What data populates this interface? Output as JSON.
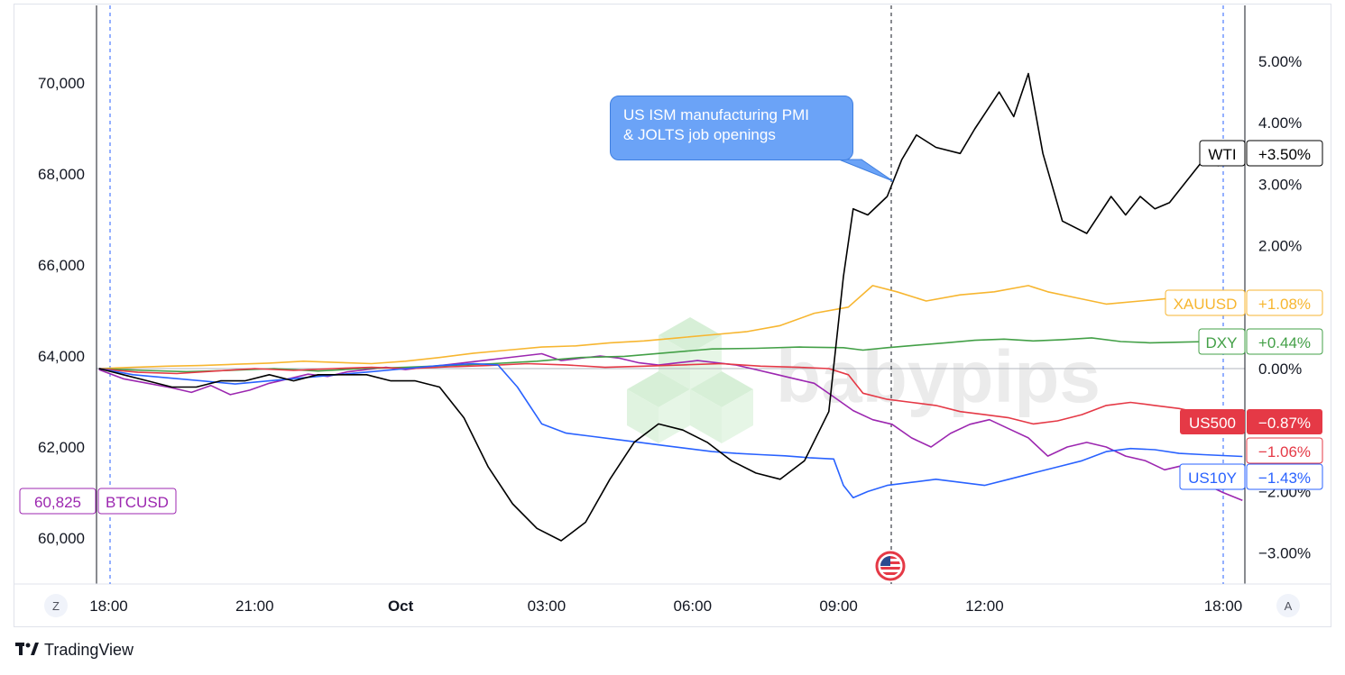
{
  "chart_data": {
    "type": "line",
    "annotation": "US ISM manufacturing PMI\n& JOLTS job openings",
    "left_axis": {
      "ticks": [
        "70,000",
        "68,000",
        "66,000",
        "64,000",
        "62,000",
        "60,000"
      ],
      "range": [
        59000,
        71000
      ]
    },
    "right_axis": {
      "ticks": [
        "5.00%",
        "4.00%",
        "3.00%",
        "2.00%",
        "0.00%",
        "−2.00%",
        "−3.00%"
      ],
      "range": [
        -3.6,
        5.7
      ]
    },
    "x_axis": {
      "ticks": [
        "18:00",
        "21:00",
        "Oct",
        "03:00",
        "06:00",
        "09:00",
        "12:00",
        "18:00"
      ]
    },
    "x_range_hours": [
      -6.25,
      17.35
    ],
    "series": [
      {
        "name": "WTI",
        "axis": "right",
        "color": "#000000",
        "last_value": "+3.50%",
        "x": [
          -6.2,
          -5.7,
          -5.2,
          -4.7,
          -4.2,
          -3.7,
          -3.2,
          -2.7,
          -2.2,
          -1.7,
          -1.2,
          -0.7,
          -0.2,
          0.3,
          0.8,
          1.3,
          1.8,
          2.3,
          2.8,
          3.3,
          3.8,
          4.3,
          4.8,
          5.3,
          5.8,
          6.3,
          6.8,
          7.3,
          7.8,
          8.3,
          8.8,
          9.1,
          9.3,
          9.6,
          10.0,
          10.3,
          10.6,
          11.0,
          11.5,
          11.8,
          12.3,
          12.6,
          12.9,
          13.2,
          13.6,
          14.1,
          14.6,
          14.9,
          15.2,
          15.5,
          15.8,
          16.1,
          16.5,
          16.8,
          17.3
        ],
        "y": [
          0.0,
          -0.1,
          -0.2,
          -0.3,
          -0.3,
          -0.2,
          -0.2,
          -0.1,
          -0.2,
          -0.1,
          -0.1,
          -0.1,
          -0.2,
          -0.2,
          -0.3,
          -0.8,
          -1.6,
          -2.2,
          -2.6,
          -2.8,
          -2.5,
          -1.8,
          -1.2,
          -0.9,
          -1.0,
          -1.2,
          -1.5,
          -1.7,
          -1.8,
          -1.5,
          -0.7,
          1.5,
          2.6,
          2.5,
          2.8,
          3.4,
          3.8,
          3.6,
          3.5,
          3.9,
          4.5,
          4.1,
          4.8,
          3.5,
          2.4,
          2.2,
          2.8,
          2.5,
          2.8,
          2.6,
          2.7,
          3.0,
          3.4,
          3.3,
          3.5
        ]
      },
      {
        "name": "XAUUSD",
        "axis": "right",
        "color": "#f7b630",
        "last_value": "+1.08%",
        "x": [
          -6.2,
          -5.5,
          -4.8,
          -4.1,
          -3.4,
          -2.7,
          -2.0,
          -1.3,
          -0.6,
          0.1,
          0.8,
          1.5,
          2.2,
          2.9,
          3.6,
          4.3,
          5.0,
          5.7,
          6.4,
          7.1,
          7.8,
          8.5,
          9.2,
          9.7,
          10.2,
          10.8,
          11.5,
          12.2,
          12.9,
          13.3,
          13.9,
          14.5,
          15.2,
          15.9,
          16.6,
          17.3
        ],
        "y": [
          0.0,
          0.02,
          0.04,
          0.05,
          0.07,
          0.09,
          0.12,
          0.1,
          0.08,
          0.12,
          0.18,
          0.25,
          0.3,
          0.35,
          0.37,
          0.42,
          0.45,
          0.5,
          0.55,
          0.6,
          0.7,
          0.9,
          1.0,
          1.35,
          1.25,
          1.1,
          1.2,
          1.25,
          1.35,
          1.25,
          1.15,
          1.05,
          1.1,
          1.15,
          1.1,
          1.08
        ]
      },
      {
        "name": "DXY",
        "axis": "right",
        "color": "#43a047",
        "last_value": "+0.44%",
        "x": [
          -6.2,
          -5.3,
          -4.4,
          -3.5,
          -2.6,
          -1.7,
          -0.8,
          0.1,
          1.0,
          1.9,
          2.8,
          3.7,
          4.6,
          5.5,
          6.4,
          7.3,
          8.2,
          9.1,
          9.5,
          10.0,
          10.6,
          11.2,
          11.8,
          12.4,
          13.0,
          13.6,
          14.2,
          14.8,
          15.4,
          16.0,
          16.6,
          17.3
        ],
        "y": [
          0.0,
          -0.03,
          -0.05,
          -0.03,
          0.0,
          -0.04,
          0.0,
          0.02,
          0.05,
          0.08,
          0.12,
          0.18,
          0.2,
          0.26,
          0.32,
          0.33,
          0.35,
          0.34,
          0.3,
          0.34,
          0.38,
          0.42,
          0.46,
          0.48,
          0.45,
          0.47,
          0.5,
          0.44,
          0.42,
          0.43,
          0.44,
          0.44
        ]
      },
      {
        "name": "US500",
        "axis": "right",
        "color": "#e53946",
        "last_value": "−0.87%",
        "x": [
          -6.2,
          -5.4,
          -4.6,
          -3.8,
          -3.0,
          -2.2,
          -1.4,
          -0.6,
          0.2,
          1.0,
          1.8,
          2.6,
          3.4,
          4.2,
          5.0,
          5.8,
          6.6,
          7.4,
          8.2,
          8.8,
          9.2,
          9.5,
          10.0,
          10.5,
          11.0,
          11.5,
          12.0,
          12.5,
          13.0,
          13.5,
          14.0,
          14.5,
          15.0,
          15.5,
          16.0,
          16.6,
          17.3
        ],
        "y": [
          0.0,
          -0.06,
          -0.08,
          -0.04,
          0.0,
          -0.03,
          0.0,
          0.02,
          0.0,
          0.03,
          0.05,
          0.08,
          0.06,
          0.02,
          0.04,
          0.06,
          0.08,
          0.04,
          0.02,
          0.0,
          -0.1,
          -0.4,
          -0.5,
          -0.55,
          -0.6,
          -0.7,
          -0.75,
          -0.8,
          -0.9,
          -0.85,
          -0.75,
          -0.6,
          -0.55,
          -0.6,
          -0.65,
          -0.75,
          -0.87
        ]
      },
      {
        "name": "US10Y",
        "axis": "right",
        "color": "#2962ff",
        "last_value": "−1.43%",
        "x": [
          -6.2,
          -5.5,
          -4.8,
          -4.1,
          -3.4,
          -2.7,
          -2.0,
          -1.3,
          -0.6,
          0.1,
          0.8,
          1.5,
          2.0,
          2.4,
          2.9,
          3.4,
          3.9,
          4.4,
          4.9,
          5.4,
          5.9,
          6.4,
          6.9,
          7.4,
          7.9,
          8.4,
          8.9,
          9.1,
          9.3,
          9.6,
          10.0,
          10.5,
          11.0,
          11.5,
          12.0,
          12.5,
          13.0,
          13.5,
          14.0,
          14.5,
          15.0,
          15.5,
          16.0,
          16.5,
          17.3
        ],
        "y": [
          0.0,
          -0.1,
          -0.15,
          -0.2,
          -0.25,
          -0.2,
          -0.15,
          -0.1,
          -0.05,
          0.0,
          0.05,
          0.08,
          0.06,
          -0.3,
          -0.9,
          -1.05,
          -1.1,
          -1.15,
          -1.2,
          -1.25,
          -1.3,
          -1.35,
          -1.38,
          -1.4,
          -1.42,
          -1.45,
          -1.47,
          -1.9,
          -2.1,
          -2.0,
          -1.9,
          -1.85,
          -1.8,
          -1.85,
          -1.9,
          -1.8,
          -1.7,
          -1.6,
          -1.5,
          -1.35,
          -1.3,
          -1.32,
          -1.38,
          -1.4,
          -1.43
        ]
      }
    ],
    "btc_series": {
      "name": "BTCUSD",
      "axis": "left",
      "color": "#9c27b0",
      "last_value": "60,825",
      "x": [
        -6.2,
        -5.7,
        -5.2,
        -4.7,
        -4.3,
        -3.9,
        -3.5,
        -3.1,
        -2.7,
        -2.3,
        -1.9,
        -1.5,
        -1.1,
        -0.7,
        -0.3,
        0.1,
        0.5,
        0.9,
        1.3,
        1.7,
        2.1,
        2.5,
        2.9,
        3.3,
        3.7,
        4.1,
        4.5,
        4.9,
        5.3,
        5.7,
        6.1,
        6.5,
        6.9,
        7.3,
        7.7,
        8.1,
        8.5,
        8.9,
        9.3,
        9.7,
        10.1,
        10.5,
        10.9,
        11.3,
        11.7,
        12.1,
        12.5,
        12.9,
        13.3,
        13.7,
        14.1,
        14.5,
        14.9,
        15.3,
        15.7,
        16.1,
        16.5,
        16.9,
        17.3
      ],
      "y": [
        63700,
        63500,
        63400,
        63300,
        63200,
        63350,
        63150,
        63250,
        63400,
        63500,
        63600,
        63550,
        63650,
        63700,
        63750,
        63700,
        63750,
        63800,
        63850,
        63900,
        63950,
        64000,
        64050,
        63900,
        63950,
        64000,
        63950,
        63850,
        63800,
        63850,
        63900,
        63850,
        63800,
        63700,
        63600,
        63500,
        63400,
        63100,
        62800,
        62600,
        62500,
        62200,
        62000,
        62300,
        62500,
        62600,
        62400,
        62200,
        61800,
        62000,
        62100,
        62000,
        61800,
        61700,
        61500,
        61600,
        61200,
        61000,
        60825
      ]
    }
  },
  "badges": {
    "wti": {
      "label": "WTI",
      "value": "+3.50%"
    },
    "xauusd": {
      "label": "XAUUSD",
      "value": "+1.08%"
    },
    "dxy": {
      "label": "DXY",
      "value": "+0.44%"
    },
    "us500": {
      "label": "US500",
      "value": "−0.87%"
    },
    "us10y": {
      "label": "US10Y",
      "value": "−1.43%"
    },
    "extra": {
      "value": "−1.06%"
    },
    "btc": {
      "label": "BTCUSD",
      "value": "60,825"
    }
  },
  "controls": {
    "zoom_button": "Z",
    "auto_button": "A"
  },
  "watermark": "babypips",
  "footer": {
    "logo": "17",
    "brand": "TradingView"
  },
  "colors": {
    "wti": "#000000",
    "xauusd": "#f7b630",
    "dxy": "#43a047",
    "us500": "#e53946",
    "us10y": "#2962ff",
    "btc": "#9c27b0",
    "callout": "#6ba3f7"
  }
}
